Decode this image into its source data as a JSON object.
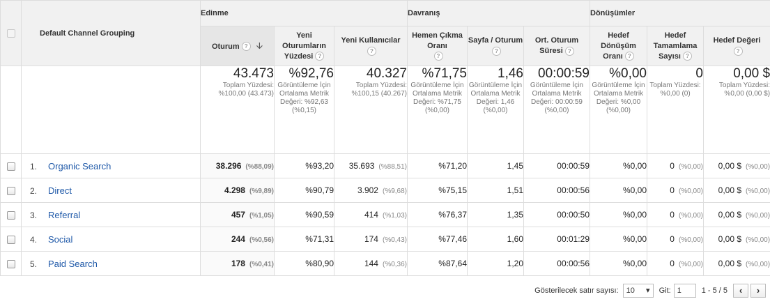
{
  "dimension_header": "Default Channel Grouping",
  "groups": {
    "acquisition": "Edinme",
    "behavior": "Davranış",
    "conversions": "Dönüşümler"
  },
  "columns": {
    "sessions": "Oturum",
    "new_sessions_pct": "Yeni Oturumların Yüzdesi",
    "new_users": "Yeni Kullanıcılar",
    "bounce_rate": "Hemen Çıkma Oranı",
    "pages_per_session": "Sayfa / Oturum",
    "avg_session_duration": "Ort. Oturum Süresi",
    "goal_conversion_rate": "Hedef Dönüşüm Oranı",
    "goal_completions": "Hedef Tamamlama Sayısı",
    "goal_value": "Hedef Değeri"
  },
  "totals": {
    "sessions": {
      "value": "43.473",
      "sub": "Toplam Yüzdesi: %100,00 (43.473)"
    },
    "new_sessions_pct": {
      "value": "%92,76",
      "sub": "Görüntüleme İçin Ortalama Metrik Değeri: %92,63 (%0,15)"
    },
    "new_users": {
      "value": "40.327",
      "sub": "Toplam Yüzdesi: %100,15 (40.267)"
    },
    "bounce_rate": {
      "value": "%71,75",
      "sub": "Görüntüleme İçin Ortalama Metrik Değeri: %71,75 (%0,00)"
    },
    "pages_per_session": {
      "value": "1,46",
      "sub": "Görüntüleme İçin Ortalama Metrik Değeri: 1,46 (%0,00)"
    },
    "avg_session_duration": {
      "value": "00:00:59",
      "sub": "Görüntüleme İçin Ortalama Metrik Değeri: 00:00:59 (%0,00)"
    },
    "goal_conversion_rate": {
      "value": "%0,00",
      "sub": "Görüntüleme İçin Ortalama Metrik Değeri: %0,00 (%0,00)"
    },
    "goal_completions": {
      "value": "0",
      "sub": "Toplam Yüzdesi: %0,00 (0)"
    },
    "goal_value": {
      "value": "0,00 $",
      "sub": "Toplam Yüzdesi: %0,00 (0,00 $)"
    }
  },
  "rows": [
    {
      "index": "1.",
      "channel": "Organic Search",
      "sessions": "38.296",
      "sessions_pct": "(%88,09)",
      "new_sessions_pct": "%93,20",
      "new_users": "35.693",
      "new_users_pct": "(%88,51)",
      "bounce_rate": "%71,20",
      "pages_per_session": "1,45",
      "avg_session_duration": "00:00:59",
      "goal_conversion_rate": "%0,00",
      "goal_completions": "0",
      "goal_completions_pct": "(%0,00)",
      "goal_value": "0,00 $",
      "goal_value_pct": "(%0,00)"
    },
    {
      "index": "2.",
      "channel": "Direct",
      "sessions": "4.298",
      "sessions_pct": "(%9,89)",
      "new_sessions_pct": "%90,79",
      "new_users": "3.902",
      "new_users_pct": "(%9,68)",
      "bounce_rate": "%75,15",
      "pages_per_session": "1,51",
      "avg_session_duration": "00:00:56",
      "goal_conversion_rate": "%0,00",
      "goal_completions": "0",
      "goal_completions_pct": "(%0,00)",
      "goal_value": "0,00 $",
      "goal_value_pct": "(%0,00)"
    },
    {
      "index": "3.",
      "channel": "Referral",
      "sessions": "457",
      "sessions_pct": "(%1,05)",
      "new_sessions_pct": "%90,59",
      "new_users": "414",
      "new_users_pct": "(%1,03)",
      "bounce_rate": "%76,37",
      "pages_per_session": "1,35",
      "avg_session_duration": "00:00:50",
      "goal_conversion_rate": "%0,00",
      "goal_completions": "0",
      "goal_completions_pct": "(%0,00)",
      "goal_value": "0,00 $",
      "goal_value_pct": "(%0,00)"
    },
    {
      "index": "4.",
      "channel": "Social",
      "sessions": "244",
      "sessions_pct": "(%0,56)",
      "new_sessions_pct": "%71,31",
      "new_users": "174",
      "new_users_pct": "(%0,43)",
      "bounce_rate": "%77,46",
      "pages_per_session": "1,60",
      "avg_session_duration": "00:01:29",
      "goal_conversion_rate": "%0,00",
      "goal_completions": "0",
      "goal_completions_pct": "(%0,00)",
      "goal_value": "0,00 $",
      "goal_value_pct": "(%0,00)"
    },
    {
      "index": "5.",
      "channel": "Paid Search",
      "sessions": "178",
      "sessions_pct": "(%0,41)",
      "new_sessions_pct": "%80,90",
      "new_users": "144",
      "new_users_pct": "(%0,36)",
      "bounce_rate": "%87,64",
      "pages_per_session": "1,20",
      "avg_session_duration": "00:00:56",
      "goal_conversion_rate": "%0,00",
      "goal_completions": "0",
      "goal_completions_pct": "(%0,00)",
      "goal_value": "0,00 $",
      "goal_value_pct": "(%0,00)"
    }
  ],
  "pagination": {
    "rows_label": "Gösterilecek satır sayısı:",
    "rows_value": "10",
    "goto_label": "Git:",
    "goto_value": "1",
    "range": "1 - 5 / 5",
    "prev": "‹",
    "next": "›"
  },
  "help_glyph": "?",
  "sort_glyph": "🡫",
  "colors": {
    "link": "#1e58a8",
    "header_bg": "#f1f1f1"
  }
}
